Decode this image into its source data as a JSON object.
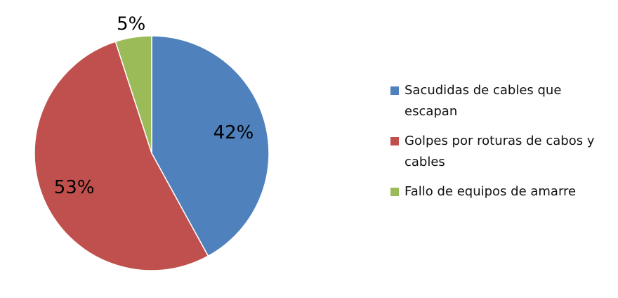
{
  "chart_data": {
    "type": "pie",
    "start": "top",
    "direction": "clockwise",
    "legend_position": "right",
    "slices": [
      {
        "label": "Sacudidas de cables que escapan",
        "value": 42,
        "display": "42%",
        "color": "#4F81BD"
      },
      {
        "label": "Golpes por roturas de cabos y cables",
        "value": 53,
        "display": "53%",
        "color": "#C0504D"
      },
      {
        "label": "Fallo de equipos de amarre",
        "value": 5,
        "display": "5%",
        "color": "#9BBB59"
      }
    ]
  }
}
